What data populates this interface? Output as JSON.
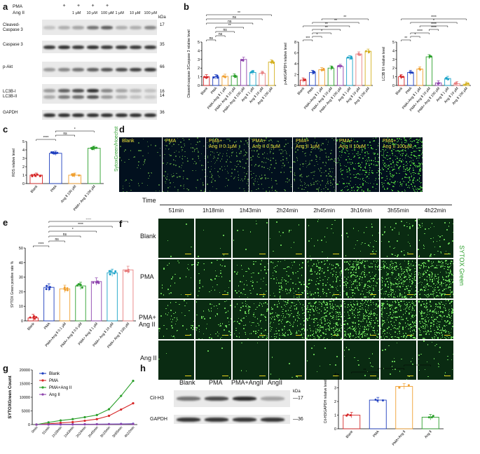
{
  "panels": {
    "a": {
      "letter": "a",
      "pma_label": "PMA",
      "ang_label": "Ang II",
      "lanes": 8,
      "pma_signs": [
        "",
        "+",
        "+",
        "+",
        "+",
        "",
        "",
        ""
      ],
      "ang_concs": [
        "",
        "",
        "1 μM",
        "10 μM",
        "100 μM",
        "1 μM",
        "10 μM",
        "100 μM"
      ],
      "kda_header": "kDa",
      "rows": [
        {
          "name": "Cleaved-\nCaspase 3",
          "kda": "17"
        },
        {
          "name": "Caspase 3",
          "kda": "35"
        },
        {
          "name": "p-Akt",
          "kda": "66"
        },
        {
          "name": "LC3B-I\nLC3B-II",
          "kda": "16\n14"
        },
        {
          "name": "GAPDH",
          "kda": "36"
        }
      ]
    },
    "b": {
      "letter": "b"
    },
    "c": {
      "letter": "c"
    },
    "d": {
      "letter": "d",
      "side_label": "SytoxGreen/Hoechst",
      "tiles": [
        "Blank",
        "PMA",
        "PMA+\nAng II 0.1μM",
        "PMA+\nAng II 0.5μM",
        "PMA+\nAng II 1μM",
        "PMA+\nAng II 10μM",
        "PMA+\nAng II 100μM"
      ]
    },
    "e": {
      "letter": "e"
    },
    "f": {
      "letter": "f",
      "time_label": "Time",
      "times": [
        "51min",
        "1h18min",
        "1h43min",
        "2h24min",
        "2h45min",
        "3h16min",
        "3h55min",
        "4h22min"
      ],
      "rows": [
        "Blank",
        "PMA",
        "PMA+\nAng II",
        "Ang II"
      ],
      "side_label": "SYTOX Green"
    },
    "g": {
      "letter": "g"
    },
    "h": {
      "letter": "h",
      "lanes": [
        "Blank",
        "PMA",
        "PMA+AngII",
        "AngII"
      ],
      "kda_header": "kDa",
      "rows": [
        {
          "name": "Cit-H3",
          "kda": "17"
        },
        {
          "name": "GAPDH",
          "kda": "36"
        }
      ]
    },
    "i": {
      "letter": "i"
    }
  },
  "chart_data": [
    {
      "id": "b1",
      "type": "bar",
      "ylabel": "Cleaved-caspase 3/Caspase 3 relative level",
      "categories": [
        "Blank",
        "PMA",
        "PMA+Ang Ⅱ 1 μM",
        "PMA+ Ang Ⅱ 10 μM",
        "PMA+ Ang Ⅱ 100 μM",
        "Ang Ⅱ 1 μM",
        "Ang Ⅱ 10 μM",
        "Ang Ⅱ 100 μM"
      ],
      "values": [
        1.0,
        1.0,
        1.05,
        1.1,
        3.0,
        1.5,
        1.4,
        2.7
      ],
      "colors": [
        "#d62728",
        "#1f3fbf",
        "#f0a030",
        "#2ca02c",
        "#8e44ad",
        "#1aa3c8",
        "#e88080",
        "#d4b020"
      ],
      "ylim": [
        0,
        5
      ],
      "yticks": [
        0,
        1,
        2,
        3,
        4,
        5
      ],
      "significance": [
        {
          "a": 0,
          "b": 1,
          "text": "ns"
        },
        {
          "a": 1,
          "b": 2,
          "text": "ns"
        },
        {
          "a": 1,
          "b": 3,
          "text": "ns"
        },
        {
          "a": 1,
          "b": 4,
          "text": "**"
        },
        {
          "a": 0,
          "b": 5,
          "text": "ns"
        },
        {
          "a": 0,
          "b": 6,
          "text": "ns"
        },
        {
          "a": 0,
          "b": 7,
          "text": "**"
        }
      ]
    },
    {
      "id": "b2",
      "type": "bar",
      "ylabel": "p-Akt/GAPDH relative level",
      "categories": [
        "Blank",
        "PMA",
        "PMA+Ang Ⅱ 1 μM",
        "PMA+ Ang Ⅱ 10 μM",
        "PMA+ Ang Ⅱ 100 μM",
        "Ang Ⅱ 1 μM",
        "Ang Ⅱ 10 μM",
        "Ang Ⅱ 100 μM"
      ],
      "values": [
        1.0,
        2.4,
        2.9,
        3.2,
        3.5,
        5.1,
        5.8,
        6.3
      ],
      "colors": [
        "#d62728",
        "#1f3fbf",
        "#f0a030",
        "#2ca02c",
        "#8e44ad",
        "#1aa3c8",
        "#e88080",
        "#d4b020"
      ],
      "ylim": [
        0,
        8
      ],
      "yticks": [
        0,
        2,
        4,
        6,
        8
      ],
      "significance": [
        {
          "a": 0,
          "b": 1,
          "text": "***"
        },
        {
          "a": 1,
          "b": 2,
          "text": "*"
        },
        {
          "a": 1,
          "b": 3,
          "text": "*"
        },
        {
          "a": 1,
          "b": 4,
          "text": "**"
        },
        {
          "a": 0,
          "b": 5,
          "text": "**"
        },
        {
          "a": 1,
          "b": 6,
          "text": "**"
        },
        {
          "a": 2,
          "b": 7,
          "text": "**"
        }
      ]
    },
    {
      "id": "b3",
      "type": "bar",
      "ylabel": "LC3B II/I relative level",
      "categories": [
        "Blank",
        "PMA",
        "PMA+Ang Ⅱ 1 μM",
        "PMA+ Ang Ⅱ 10 μM",
        "PMA+ Ang Ⅱ 100 μM",
        "Ang Ⅱ 1 μM",
        "Ang Ⅱ 10 μM",
        "Ang Ⅱ 100 μM"
      ],
      "values": [
        1.0,
        1.5,
        1.9,
        3.3,
        0.3,
        0.8,
        0.2,
        0.15
      ],
      "colors": [
        "#d62728",
        "#1f3fbf",
        "#f0a030",
        "#2ca02c",
        "#8e44ad",
        "#1aa3c8",
        "#e88080",
        "#d4b020"
      ],
      "ylim": [
        0,
        5
      ],
      "yticks": [
        0,
        1,
        2,
        3,
        4,
        5
      ],
      "significance": [
        {
          "a": 0,
          "b": 1,
          "text": "**"
        },
        {
          "a": 1,
          "b": 2,
          "text": "*"
        },
        {
          "a": 1,
          "b": 3,
          "text": "****"
        },
        {
          "a": 3,
          "b": 4,
          "text": "****"
        },
        {
          "a": 2,
          "b": 5,
          "text": "****"
        },
        {
          "a": 1,
          "b": 6,
          "text": "*"
        },
        {
          "a": 0,
          "b": 7,
          "text": "****"
        }
      ]
    },
    {
      "id": "c",
      "type": "bar",
      "ylabel": "ROS relative level",
      "categories": [
        "Blank",
        "PMA",
        "Ang Ⅱ 100 μM",
        "PMA+ Ang Ⅱ 100 μM"
      ],
      "values": [
        1.0,
        3.6,
        1.0,
        4.2
      ],
      "colors": [
        "#d62728",
        "#1f3fbf",
        "#f0a030",
        "#2ca02c"
      ],
      "ylim": [
        0,
        5
      ],
      "yticks": [
        0,
        1,
        2,
        3,
        4,
        5
      ],
      "significance": [
        {
          "a": 0,
          "b": 1,
          "text": "****"
        },
        {
          "a": 1,
          "b": 2,
          "text": "ns"
        },
        {
          "a": 1,
          "b": 3,
          "text": "*"
        }
      ]
    },
    {
      "id": "e",
      "type": "bar",
      "ylabel": "SYTOX Green positive rate %",
      "categories": [
        "Blank",
        "PMA",
        "PMA+Ang Ⅱ 0.1 μM",
        "PMA+ Ang Ⅱ 0.5 μM",
        "PMA+ Ang Ⅱ 1 μM",
        "PMA+ Ang Ⅱ 10 μM",
        "PMA+ Ang Ⅱ 100 μM"
      ],
      "values": [
        2,
        23,
        22,
        24,
        27,
        33,
        35
      ],
      "colors": [
        "#d62728",
        "#1f3fbf",
        "#f0a030",
        "#2ca02c",
        "#8e44ad",
        "#1aa3c8",
        "#e88080"
      ],
      "ylim": [
        0,
        50
      ],
      "yticks": [
        0,
        10,
        20,
        30,
        40,
        50
      ],
      "significance": [
        {
          "a": 0,
          "b": 1,
          "text": "****"
        },
        {
          "a": 1,
          "b": 2,
          "text": "ns"
        },
        {
          "a": 1,
          "b": 3,
          "text": "ns"
        },
        {
          "a": 1,
          "b": 4,
          "text": "*"
        },
        {
          "a": 1,
          "b": 5,
          "text": "****"
        },
        {
          "a": 1,
          "b": 6,
          "text": "****"
        }
      ]
    },
    {
      "id": "g",
      "type": "line",
      "ylabel": "SYTOXGreen Count",
      "categories": [
        "0min",
        "51min",
        "1h18min",
        "1h43min",
        "2h24min",
        "2h45min",
        "3h16min",
        "3h55min",
        "4h22min"
      ],
      "ylim": [
        0,
        20000
      ],
      "yticks": [
        0,
        5000,
        10000,
        15000,
        20000
      ],
      "series": [
        {
          "name": "Blank",
          "color": "#1f3fbf",
          "values": [
            0,
            50,
            80,
            100,
            120,
            150,
            180,
            220,
            300
          ]
        },
        {
          "name": "PMA",
          "color": "#d62728",
          "values": [
            0,
            300,
            600,
            900,
            1400,
            2000,
            3200,
            5500,
            7800
          ]
        },
        {
          "name": "PMA+Ang II",
          "color": "#2ca02c",
          "values": [
            0,
            800,
            1500,
            2000,
            2700,
            3500,
            5600,
            10500,
            16000
          ]
        },
        {
          "name": "Ang II",
          "color": "#8e44ad",
          "values": [
            0,
            40,
            60,
            80,
            100,
            120,
            150,
            180,
            200
          ]
        }
      ]
    },
    {
      "id": "i",
      "type": "bar",
      "ylabel": "Cit-H3/GAPDH relative level",
      "categories": [
        "Blank",
        "PMA",
        "PMA+Ang Ⅱ",
        "Ang Ⅱ"
      ],
      "values": [
        1.0,
        2.1,
        3.1,
        0.85
      ],
      "colors": [
        "#d62728",
        "#1f3fbf",
        "#f0a030",
        "#2ca02c"
      ],
      "ylim": [
        0,
        4
      ],
      "yticks": [
        0,
        1,
        2,
        3,
        4
      ],
      "significance": [
        {
          "a": 0,
          "b": 1,
          "text": "**"
        },
        {
          "a": 1,
          "b": 2,
          "text": "*"
        },
        {
          "a": 2,
          "b": 3,
          "text": "***"
        },
        {
          "a": 0,
          "b": 2,
          "text": "**"
        }
      ]
    }
  ]
}
